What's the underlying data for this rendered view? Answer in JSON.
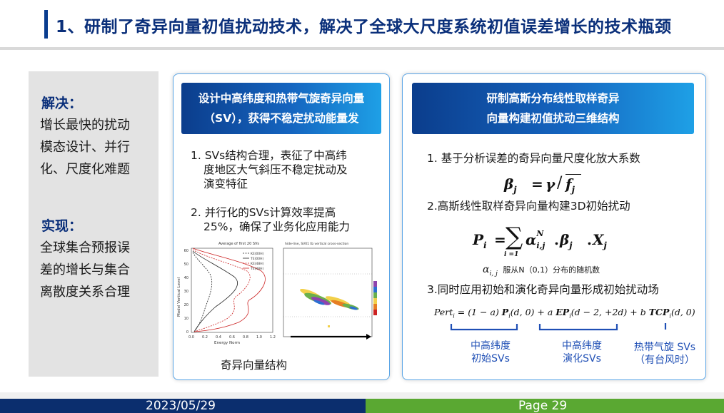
{
  "title": "1、研制了奇异向量初值扰动技术，解决了全球大尺度系统初值误差增长的技术瓶颈",
  "left": {
    "solve_head": "解决：",
    "solve_lines": [
      "增长最快的扰动",
      "模态设计、并行",
      "化、尺度化难题"
    ],
    "achieve_head": "实现：",
    "achieve_lines": [
      "全球集合预报误",
      "差的增长与集合",
      "离散度关系合理"
    ]
  },
  "middle": {
    "header_lines": [
      "设计中高纬度和热带气旋奇异向量",
      "（SV），获得不稳定扰动能量发"
    ],
    "item1_lines": [
      "1. SVs结构合理，表征了中高纬",
      "度地区大气斜压不稳定扰动及",
      "演变特征"
    ],
    "item2_lines": [
      "2. 并行化的SVs计算效率提高",
      "25%，确保了业务化应用能力"
    ],
    "caption": "奇异向量结构",
    "fig_left_title": "Average of first 20 SVs",
    "fig_right_title": "hide-line, SV01 tb vertical cross-section",
    "fig_ylabel": "Model Vertical Level",
    "fig_xlabel": "Energy Norm",
    "fig_yticks": [
      "60",
      "50",
      "40",
      "30",
      "20",
      "10",
      "0"
    ],
    "fig_xticks": [
      "0.0",
      "0.2",
      "0.4",
      "0.6",
      "0.8",
      "1.0",
      "1.2"
    ],
    "legend": [
      "KE(00H)",
      "TE(00H)",
      "KE(48H)",
      "TE(48H)"
    ],
    "colors": {
      "black": "#222222",
      "red": "#cc2222"
    }
  },
  "right": {
    "header_lines": [
      "研制高斯分布线性取样奇异",
      "向量构建初值扰动三维结构"
    ],
    "item1": "1. 基于分析误差的奇异向量尺度化放大系数",
    "formula1": "βj = γ/ f̄j",
    "item2": "2.高斯线性取样奇异向量构建3D初始扰动",
    "formula2": "Pi = Σ αi,jN · βj · Xj",
    "alpha_note_text": "服从N（0,1）分布的随机数",
    "item3": "3.同时应用初始和演化奇异向量形成初始扰动场",
    "formula3": "Perti = (1 − a) Pi(d,0) + a EPi(d − 2, +2d) + b TCPi(d,0)",
    "label1_lines": [
      "中高纬度",
      "初始SVs"
    ],
    "label2_lines": [
      "中高纬度",
      "演化SVs"
    ],
    "label3_lines": [
      "热带气旋 SVs",
      "（有台风时）"
    ]
  },
  "footer": {
    "date": "2023/05/29",
    "page": "Page 29"
  }
}
